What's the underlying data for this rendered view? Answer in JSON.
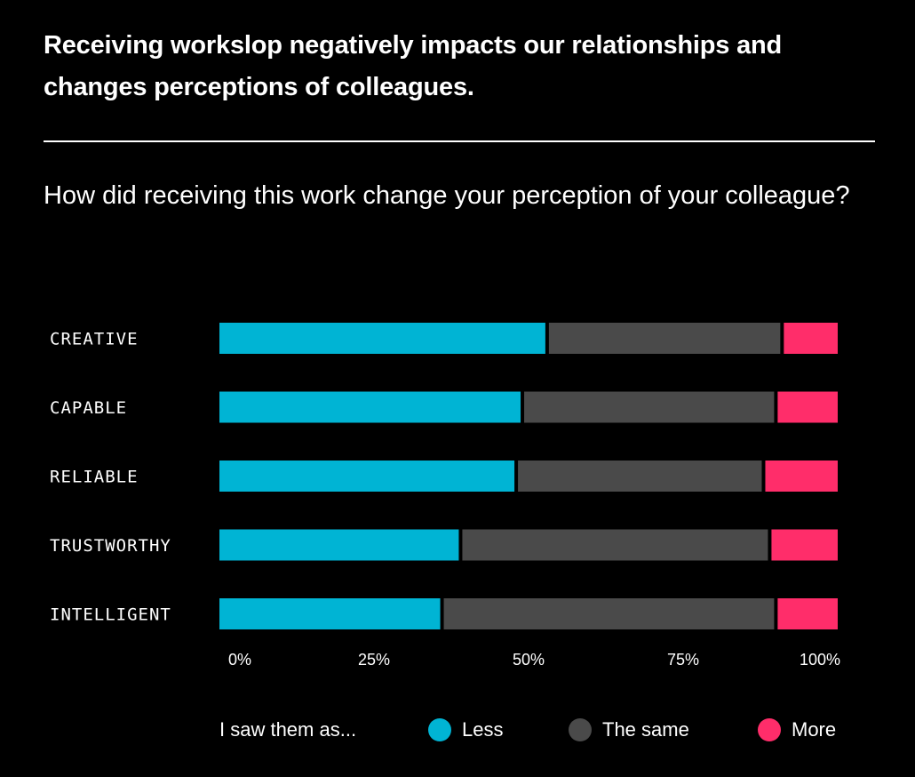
{
  "header": {
    "title": "Receiving workslop negatively impacts our relationships and changes perceptions of colleagues.",
    "subtitle": "How did receiving this work change your perception of your colleague?"
  },
  "legend": {
    "title": "I saw them as...",
    "items": [
      {
        "label": "Less",
        "color": "#00b4d4"
      },
      {
        "label": "The same",
        "color": "#4a4a4a"
      },
      {
        "label": "More",
        "color": "#ff2d6a"
      }
    ]
  },
  "chart_data": {
    "type": "bar",
    "orientation": "horizontal",
    "stacked": true,
    "categories": [
      "CREATIVE",
      "CAPABLE",
      "RELIABLE",
      "TRUSTWORTHY",
      "INTELLIGENT"
    ],
    "series": [
      {
        "name": "Less",
        "color": "#00b4d4",
        "values": [
          53,
          49,
          48,
          39,
          36
        ]
      },
      {
        "name": "The same",
        "color": "#4a4a4a",
        "values": [
          38,
          41,
          40,
          50,
          54
        ]
      },
      {
        "name": "More",
        "color": "#ff2d6a",
        "values": [
          9,
          10,
          12,
          11,
          10
        ]
      }
    ],
    "xticks": [
      "0%",
      "25%",
      "50%",
      "75%",
      "100%"
    ],
    "xlim": [
      0,
      100
    ],
    "grid": false,
    "legend_position": "bottom"
  }
}
